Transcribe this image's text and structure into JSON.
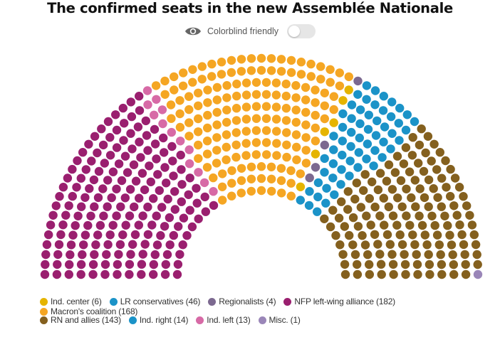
{
  "title": "The confirmed seats in the new Assemblée Nationale",
  "colorblind": {
    "label": "Colorblind friendly",
    "enabled": false,
    "icon": "eye-icon"
  },
  "chart_data": {
    "type": "hemicycle",
    "total_seats": 577,
    "order_left_to_right": [
      "left",
      "ncenter_left",
      "macron",
      "center",
      "lr",
      "right",
      "regional",
      "rn",
      "misc"
    ],
    "parties": [
      {
        "key": "center",
        "label": "Ind. center (6)",
        "seats": 6,
        "color": "#e5b400"
      },
      {
        "key": "lr",
        "label": "LR conservatives (46)",
        "seats": 46,
        "color": "#1b93c8"
      },
      {
        "key": "regional",
        "label": "Regionalists (4)",
        "seats": 4,
        "color": "#7c6990"
      },
      {
        "key": "nfp",
        "label": "NFP left-wing alliance (182)",
        "seats": 182,
        "color": "#9a1f6f"
      },
      {
        "key": "macron",
        "label": "Macron's coalition (168)",
        "seats": 168,
        "color": "#f5a623"
      },
      {
        "key": "rn",
        "label": "RN and allies (143)",
        "seats": 143,
        "color": "#84601e"
      },
      {
        "key": "right",
        "label": "Ind. right (14)",
        "seats": 14,
        "color": "#1b93c8"
      },
      {
        "key": "left",
        "label": "Ind. left (13)",
        "seats": 13,
        "color": "#d76aa6"
      },
      {
        "key": "misc",
        "label": "Misc. (1)",
        "seats": 1,
        "color": "#9a86b8"
      }
    ]
  },
  "legend": {
    "row1": [
      {
        "label": "Ind. center (6)",
        "color": "#e5b400"
      },
      {
        "label": "LR conservatives (46)",
        "color": "#1b93c8"
      },
      {
        "label": "Regionalists (4)",
        "color": "#7c6990"
      },
      {
        "label": "NFP left-wing alliance (182)",
        "color": "#9a1f6f"
      },
      {
        "label": "Macron's coalition (168)",
        "color": "#f5a623"
      }
    ],
    "row2": [
      {
        "label": "RN and allies (143)",
        "color": "#84601e"
      },
      {
        "label": "Ind. right (14)",
        "color": "#1b93c8"
      },
      {
        "label": "Ind. left (13)",
        "color": "#d76aa6"
      },
      {
        "label": "Misc. (1)",
        "color": "#9a86b8"
      }
    ]
  }
}
